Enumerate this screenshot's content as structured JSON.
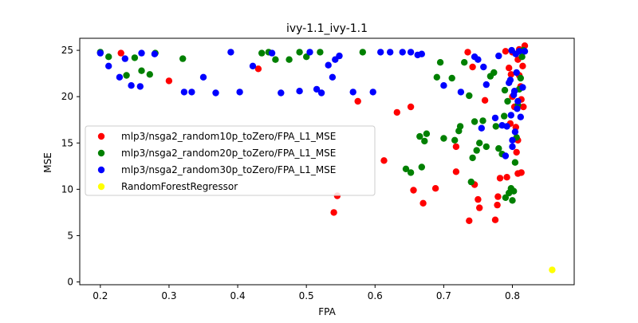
{
  "chart_data": {
    "type": "scatter",
    "title": "ivy-1.1_ivy-1.1",
    "xlabel": "FPA",
    "ylabel": "MSE",
    "xlim": [
      0.17,
      0.89
    ],
    "ylim": [
      -0.3,
      26.3
    ],
    "x_ticks": [
      "0.2",
      "0.3",
      "0.4",
      "0.5",
      "0.6",
      "0.7",
      "0.8"
    ],
    "y_ticks": [
      "0",
      "5",
      "10",
      "15",
      "20",
      "25"
    ],
    "grid": false,
    "legend_position": "center-left",
    "series": [
      {
        "name": "mlp3/nsga2_random10p_toZero/FPA_L1_MSE",
        "color": "#ff0000",
        "points": [
          [
            0.23,
            24.7
          ],
          [
            0.3,
            21.7
          ],
          [
            0.43,
            23.0
          ],
          [
            0.54,
            7.5
          ],
          [
            0.545,
            9.3
          ],
          [
            0.575,
            19.5
          ],
          [
            0.613,
            13.1
          ],
          [
            0.632,
            18.3
          ],
          [
            0.652,
            18.9
          ],
          [
            0.656,
            9.9
          ],
          [
            0.67,
            8.5
          ],
          [
            0.688,
            10.1
          ],
          [
            0.718,
            11.9
          ],
          [
            0.718,
            14.6
          ],
          [
            0.735,
            24.8
          ],
          [
            0.737,
            6.6
          ],
          [
            0.742,
            23.2
          ],
          [
            0.745,
            10.5
          ],
          [
            0.75,
            8.9
          ],
          [
            0.752,
            8.0
          ],
          [
            0.76,
            19.6
          ],
          [
            0.775,
            6.7
          ],
          [
            0.778,
            8.3
          ],
          [
            0.779,
            9.2
          ],
          [
            0.782,
            11.2
          ],
          [
            0.79,
            24.9
          ],
          [
            0.792,
            11.3
          ],
          [
            0.795,
            23.1
          ],
          [
            0.798,
            22.4
          ],
          [
            0.8,
            24.8
          ],
          [
            0.8,
            20.0
          ],
          [
            0.803,
            18.9
          ],
          [
            0.805,
            16.7
          ],
          [
            0.806,
            14.0
          ],
          [
            0.808,
            15.3
          ],
          [
            0.808,
            11.7
          ],
          [
            0.81,
            25.1
          ],
          [
            0.81,
            22.3
          ],
          [
            0.812,
            21.1
          ],
          [
            0.813,
            19.7
          ],
          [
            0.815,
            23.3
          ],
          [
            0.816,
            18.9
          ],
          [
            0.818,
            25.5
          ],
          [
            0.813,
            11.8
          ],
          [
            0.797,
            17.1
          ],
          [
            0.808,
            24.0
          ]
        ]
      },
      {
        "name": "mlp3/nsga2_random20p_toZero/FPA_L1_MSE",
        "color": "#008000",
        "points": [
          [
            0.2,
            24.8
          ],
          [
            0.212,
            24.3
          ],
          [
            0.238,
            22.3
          ],
          [
            0.25,
            24.2
          ],
          [
            0.26,
            22.8
          ],
          [
            0.272,
            22.4
          ],
          [
            0.28,
            24.7
          ],
          [
            0.32,
            24.1
          ],
          [
            0.435,
            24.7
          ],
          [
            0.445,
            24.8
          ],
          [
            0.455,
            24.0
          ],
          [
            0.475,
            24.0
          ],
          [
            0.49,
            24.8
          ],
          [
            0.5,
            24.3
          ],
          [
            0.52,
            24.8
          ],
          [
            0.582,
            24.8
          ],
          [
            0.645,
            12.2
          ],
          [
            0.652,
            11.8
          ],
          [
            0.665,
            15.7
          ],
          [
            0.668,
            12.4
          ],
          [
            0.672,
            15.2
          ],
          [
            0.675,
            16.0
          ],
          [
            0.69,
            22.1
          ],
          [
            0.695,
            23.7
          ],
          [
            0.7,
            15.5
          ],
          [
            0.712,
            22.0
          ],
          [
            0.716,
            15.3
          ],
          [
            0.722,
            16.3
          ],
          [
            0.724,
            16.8
          ],
          [
            0.73,
            23.7
          ],
          [
            0.737,
            20.1
          ],
          [
            0.74,
            10.8
          ],
          [
            0.742,
            13.4
          ],
          [
            0.745,
            17.3
          ],
          [
            0.748,
            14.2
          ],
          [
            0.752,
            15.0
          ],
          [
            0.757,
            17.4
          ],
          [
            0.762,
            14.6
          ],
          [
            0.768,
            22.2
          ],
          [
            0.773,
            22.6
          ],
          [
            0.776,
            16.8
          ],
          [
            0.78,
            14.4
          ],
          [
            0.785,
            13.8
          ],
          [
            0.788,
            17.9
          ],
          [
            0.79,
            9.1
          ],
          [
            0.795,
            9.6
          ],
          [
            0.798,
            10.1
          ],
          [
            0.8,
            8.8
          ],
          [
            0.802,
            9.8
          ],
          [
            0.804,
            12.9
          ],
          [
            0.806,
            15.6
          ],
          [
            0.808,
            19.1
          ],
          [
            0.81,
            20.8
          ],
          [
            0.812,
            22.0
          ],
          [
            0.814,
            24.3
          ],
          [
            0.816,
            25.0
          ],
          [
            0.793,
            19.5
          ],
          [
            0.789,
            20.7
          ]
        ]
      },
      {
        "name": "mlp3/nsga2_random30p_toZero/FPA_L1_MSE",
        "color": "#0000ff",
        "points": [
          [
            0.2,
            24.7
          ],
          [
            0.212,
            23.3
          ],
          [
            0.228,
            22.1
          ],
          [
            0.236,
            24.1
          ],
          [
            0.245,
            21.2
          ],
          [
            0.258,
            21.1
          ],
          [
            0.26,
            24.7
          ],
          [
            0.279,
            24.6
          ],
          [
            0.322,
            20.5
          ],
          [
            0.333,
            20.5
          ],
          [
            0.35,
            22.1
          ],
          [
            0.368,
            20.4
          ],
          [
            0.39,
            24.8
          ],
          [
            0.403,
            20.5
          ],
          [
            0.422,
            23.3
          ],
          [
            0.45,
            24.7
          ],
          [
            0.463,
            20.4
          ],
          [
            0.49,
            20.6
          ],
          [
            0.505,
            24.8
          ],
          [
            0.515,
            20.8
          ],
          [
            0.522,
            20.4
          ],
          [
            0.532,
            23.4
          ],
          [
            0.538,
            22.1
          ],
          [
            0.542,
            24.0
          ],
          [
            0.548,
            24.4
          ],
          [
            0.568,
            20.5
          ],
          [
            0.597,
            20.5
          ],
          [
            0.608,
            24.8
          ],
          [
            0.622,
            24.8
          ],
          [
            0.64,
            24.8
          ],
          [
            0.652,
            24.8
          ],
          [
            0.662,
            24.5
          ],
          [
            0.668,
            24.6
          ],
          [
            0.7,
            21.2
          ],
          [
            0.725,
            20.5
          ],
          [
            0.745,
            24.3
          ],
          [
            0.75,
            24.0
          ],
          [
            0.755,
            16.6
          ],
          [
            0.758,
            23.2
          ],
          [
            0.762,
            21.3
          ],
          [
            0.775,
            17.7
          ],
          [
            0.78,
            24.4
          ],
          [
            0.785,
            16.9
          ],
          [
            0.79,
            13.6
          ],
          [
            0.795,
            21.5
          ],
          [
            0.798,
            18.0
          ],
          [
            0.8,
            14.6
          ],
          [
            0.802,
            20.2
          ],
          [
            0.804,
            16.2
          ],
          [
            0.806,
            22.6
          ],
          [
            0.808,
            19.5
          ],
          [
            0.81,
            24.9
          ],
          [
            0.812,
            17.8
          ],
          [
            0.815,
            21.0
          ],
          [
            0.818,
            24.9
          ],
          [
            0.799,
            25.0
          ],
          [
            0.8,
            15.3
          ],
          [
            0.803,
            20.6
          ],
          [
            0.807,
            18.7
          ],
          [
            0.797,
            21.8
          ],
          [
            0.792,
            16.8
          ],
          [
            0.805,
            24.6
          ]
        ]
      },
      {
        "name": "RandomForestRegressor",
        "color": "#ffff00",
        "points": [
          [
            0.858,
            1.3
          ]
        ]
      }
    ]
  }
}
